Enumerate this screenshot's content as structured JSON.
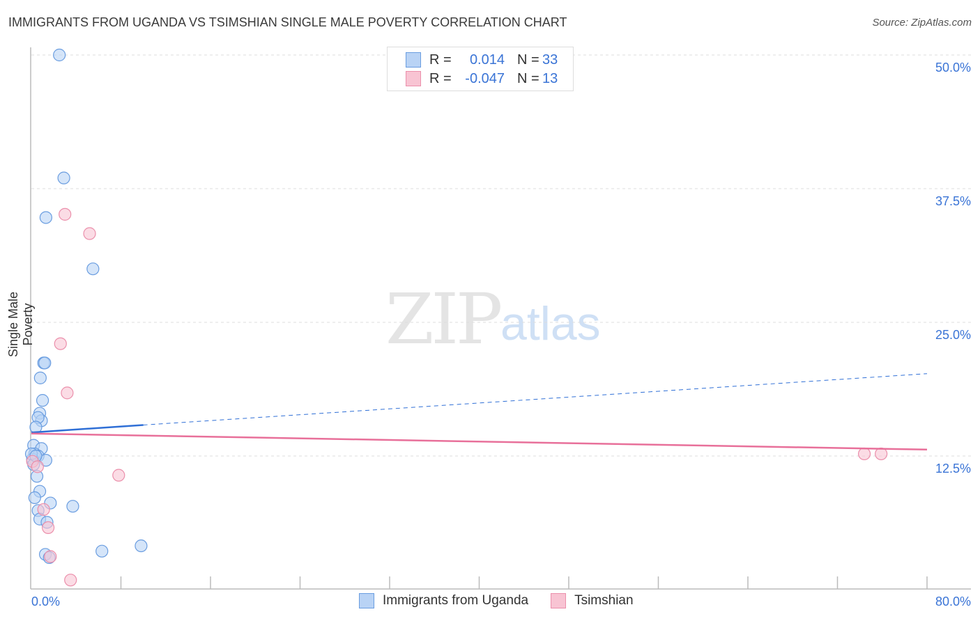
{
  "chart_data": {
    "type": "scatter",
    "title": "IMMIGRANTS FROM UGANDA VS TSIMSHIAN SINGLE MALE POVERTY CORRELATION CHART",
    "source": "Source: ZipAtlas.com",
    "xlabel": "",
    "ylabel": "Single Male Poverty",
    "xlim": [
      0,
      80
    ],
    "ylim": [
      0,
      50
    ],
    "x_tick_labels": [
      "0.0%",
      "80.0%"
    ],
    "y_ticks": [
      12.5,
      25.0,
      37.5,
      50.0
    ],
    "y_tick_labels": [
      "12.5%",
      "25.0%",
      "37.5%",
      "50.0%"
    ],
    "grid": true,
    "legend_placement": "top-center",
    "watermark": "ZIPatlas",
    "series": [
      {
        "name": "Immigrants from Uganda",
        "color": "#6a9de0",
        "fill": "#b9d3f5",
        "R": "0.014",
        "N": "33",
        "trend": {
          "x": [
            0,
            10,
            80
          ],
          "y": [
            14.7,
            15.4,
            20.2
          ],
          "solid_until": 10
        },
        "points": [
          [
            2.5,
            50.0
          ],
          [
            2.9,
            38.5
          ],
          [
            1.3,
            34.8
          ],
          [
            5.5,
            30.0
          ],
          [
            1.1,
            21.2
          ],
          [
            1.2,
            21.2
          ],
          [
            0.8,
            19.8
          ],
          [
            1.0,
            17.7
          ],
          [
            0.75,
            16.5
          ],
          [
            0.9,
            15.8
          ],
          [
            0.6,
            16.1
          ],
          [
            0.4,
            15.2
          ],
          [
            0.2,
            13.5
          ],
          [
            0.9,
            13.2
          ],
          [
            0.3,
            12.7
          ],
          [
            0.6,
            12.5
          ],
          [
            0.1,
            12.2
          ],
          [
            1.3,
            12.1
          ],
          [
            0.2,
            11.7
          ],
          [
            0.5,
            10.6
          ],
          [
            0.75,
            9.2
          ],
          [
            0.3,
            8.6
          ],
          [
            1.7,
            8.1
          ],
          [
            3.7,
            7.8
          ],
          [
            0.6,
            7.4
          ],
          [
            0.75,
            6.6
          ],
          [
            1.4,
            6.3
          ],
          [
            9.8,
            4.1
          ],
          [
            6.3,
            3.6
          ],
          [
            1.25,
            3.3
          ],
          [
            1.6,
            3.0
          ],
          [
            0.0,
            12.7
          ],
          [
            0.4,
            12.5
          ]
        ]
      },
      {
        "name": "Tsimshian",
        "color": "#eb8fab",
        "fill": "#f8c4d3",
        "R": "-0.047",
        "N": "13",
        "trend": {
          "x": [
            0,
            80
          ],
          "y": [
            14.6,
            13.1
          ],
          "solid_until": 80
        },
        "points": [
          [
            3.0,
            35.1
          ],
          [
            5.2,
            33.3
          ],
          [
            2.6,
            23.0
          ],
          [
            3.2,
            18.4
          ],
          [
            7.8,
            10.7
          ],
          [
            0.1,
            12.0
          ],
          [
            0.55,
            11.5
          ],
          [
            1.1,
            7.5
          ],
          [
            1.5,
            5.8
          ],
          [
            1.7,
            3.1
          ],
          [
            3.5,
            0.9
          ],
          [
            74.4,
            12.7
          ],
          [
            75.9,
            12.7
          ]
        ]
      }
    ]
  },
  "legend": {
    "r_label": "R =",
    "n_label": "N ="
  }
}
